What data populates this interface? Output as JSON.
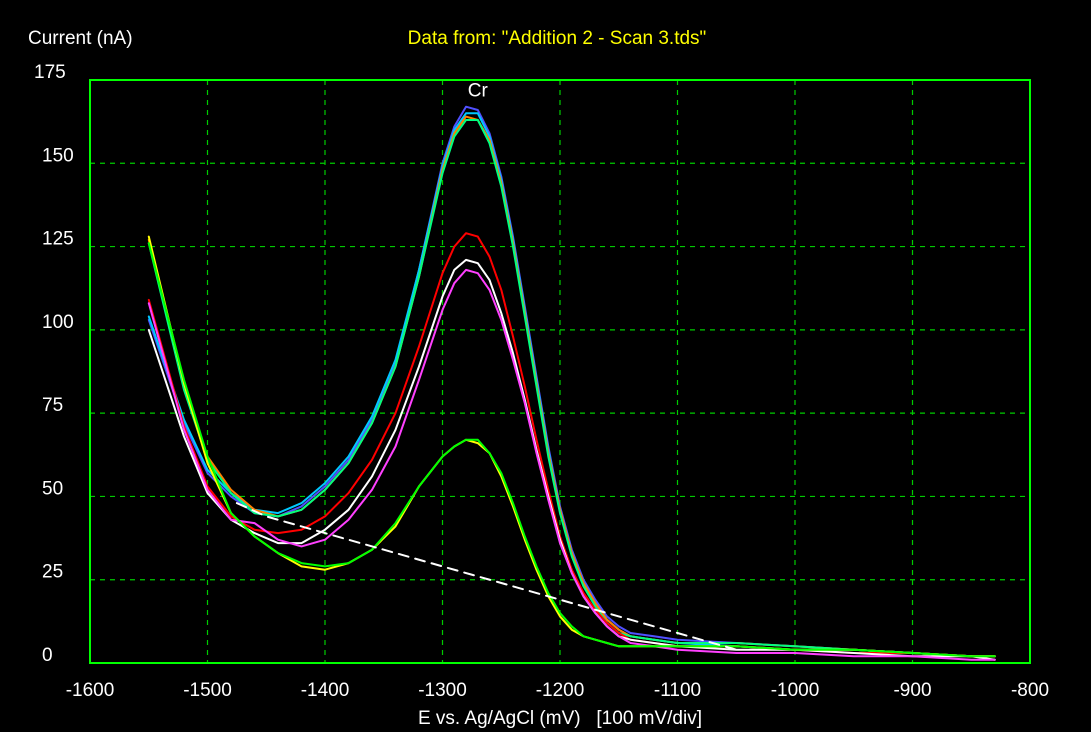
{
  "colors": {
    "background": "#000000",
    "frame": "#00ff00",
    "grid": "#00cc00",
    "title": "#ffff00",
    "text": "#ffffff"
  },
  "chart_data": {
    "type": "line",
    "title": "Data from: \"Addition 2 - Scan 3.tds\"",
    "ylabel": "Current (nA)",
    "xlabel": "E vs. Ag/AgCl (mV)   [100 mV/div]",
    "xlim": [
      -1600,
      -800
    ],
    "ylim": [
      0,
      175
    ],
    "xticks": [
      "-1600",
      "-1500",
      "-1400",
      "-1300",
      "-1200",
      "-1100",
      "-1000",
      "-900",
      "-800"
    ],
    "yticks": [
      "0",
      "25",
      "50",
      "75",
      "100",
      "125",
      "150",
      "175"
    ],
    "grid": true,
    "annotations": [
      {
        "text": "Cr",
        "x": -1270,
        "y": 170
      }
    ],
    "series": [
      {
        "color": "#5050ff",
        "x": [
          -1550,
          -1520,
          -1500,
          -1480,
          -1460,
          -1440,
          -1420,
          -1400,
          -1380,
          -1360,
          -1340,
          -1320,
          -1300,
          -1290,
          -1280,
          -1270,
          -1260,
          -1250,
          -1240,
          -1230,
          -1220,
          -1210,
          -1200,
          -1190,
          -1180,
          -1170,
          -1160,
          -1150,
          -1140,
          -1120,
          -1100,
          -1050,
          -1000,
          -950,
          -900,
          -850,
          -830
        ],
        "y": [
          103,
          72,
          57,
          50,
          45,
          44,
          47,
          53,
          61,
          73,
          90,
          118,
          150,
          161,
          167,
          166,
          159,
          146,
          128,
          107,
          86,
          65,
          47,
          34,
          25,
          19,
          14,
          11,
          9,
          8,
          7,
          6,
          5,
          4,
          3,
          2,
          2
        ]
      },
      {
        "color": "#00c8ff",
        "x": [
          -1550,
          -1520,
          -1500,
          -1480,
          -1460,
          -1440,
          -1420,
          -1400,
          -1380,
          -1360,
          -1340,
          -1320,
          -1300,
          -1290,
          -1280,
          -1270,
          -1260,
          -1250,
          -1240,
          -1230,
          -1220,
          -1210,
          -1200,
          -1190,
          -1180,
          -1170,
          -1160,
          -1150,
          -1140,
          -1120,
          -1100,
          -1050,
          -1000,
          -950,
          -900,
          -850,
          -830
        ],
        "y": [
          104,
          73,
          58,
          51,
          46,
          45,
          48,
          54,
          62,
          74,
          91,
          118,
          149,
          160,
          165,
          165,
          158,
          145,
          127,
          106,
          85,
          64,
          46,
          33,
          24,
          18,
          13,
          10,
          8,
          7,
          6,
          5,
          4,
          4,
          3,
          2,
          2
        ]
      },
      {
        "color": "#ff8000",
        "x": [
          -1550,
          -1520,
          -1500,
          -1480,
          -1460,
          -1440,
          -1420,
          -1400,
          -1380,
          -1360,
          -1340,
          -1320,
          -1300,
          -1290,
          -1280,
          -1270,
          -1260,
          -1250,
          -1240,
          -1230,
          -1220,
          -1210,
          -1200,
          -1190,
          -1180,
          -1170,
          -1160,
          -1150,
          -1140,
          -1120,
          -1100,
          -1050,
          -1000,
          -950,
          -900,
          -850,
          -830
        ],
        "y": [
          127,
          83,
          62,
          52,
          46,
          44,
          46,
          52,
          60,
          72,
          89,
          116,
          148,
          159,
          164,
          163,
          157,
          144,
          126,
          105,
          84,
          63,
          46,
          33,
          24,
          18,
          13,
          10,
          8,
          7,
          6,
          6,
          5,
          4,
          3,
          2,
          2
        ]
      },
      {
        "color": "#00ff80",
        "x": [
          -1550,
          -1520,
          -1500,
          -1480,
          -1460,
          -1440,
          -1420,
          -1400,
          -1380,
          -1360,
          -1340,
          -1320,
          -1300,
          -1290,
          -1280,
          -1270,
          -1260,
          -1250,
          -1240,
          -1230,
          -1220,
          -1210,
          -1200,
          -1190,
          -1180,
          -1170,
          -1160,
          -1150,
          -1140,
          -1120,
          -1100,
          -1050,
          -1000,
          -950,
          -900,
          -850,
          -830
        ],
        "y": [
          126,
          82,
          61,
          51,
          45,
          44,
          46,
          52,
          60,
          72,
          89,
          116,
          147,
          158,
          163,
          163,
          156,
          143,
          125,
          104,
          83,
          62,
          45,
          32,
          23,
          17,
          12,
          9,
          8,
          7,
          6,
          6,
          5,
          4,
          3,
          2,
          2
        ]
      },
      {
        "color": "#ff0000",
        "x": [
          -1550,
          -1520,
          -1500,
          -1480,
          -1460,
          -1440,
          -1420,
          -1400,
          -1380,
          -1360,
          -1340,
          -1320,
          -1300,
          -1290,
          -1280,
          -1270,
          -1260,
          -1250,
          -1240,
          -1230,
          -1220,
          -1210,
          -1200,
          -1190,
          -1180,
          -1170,
          -1160,
          -1150,
          -1140,
          -1120,
          -1100,
          -1050,
          -1000,
          -950,
          -900,
          -850,
          -830
        ],
        "y": [
          109,
          71,
          53,
          44,
          40,
          39,
          40,
          44,
          51,
          61,
          75,
          95,
          117,
          125,
          129,
          128,
          122,
          112,
          98,
          83,
          67,
          52,
          38,
          28,
          21,
          16,
          12,
          9,
          7,
          6,
          5,
          5,
          4,
          3,
          3,
          2,
          2
        ]
      },
      {
        "color": "#ffffff",
        "x": [
          -1550,
          -1520,
          -1500,
          -1480,
          -1460,
          -1440,
          -1420,
          -1400,
          -1380,
          -1360,
          -1340,
          -1320,
          -1300,
          -1290,
          -1280,
          -1270,
          -1260,
          -1250,
          -1240,
          -1230,
          -1220,
          -1210,
          -1200,
          -1190,
          -1180,
          -1170,
          -1160,
          -1150,
          -1140,
          -1120,
          -1100,
          -1050,
          -1000,
          -950,
          -900,
          -850,
          -830
        ],
        "y": [
          100,
          68,
          51,
          43,
          39,
          36,
          36,
          40,
          46,
          56,
          70,
          89,
          110,
          118,
          121,
          120,
          115,
          105,
          93,
          79,
          64,
          50,
          37,
          27,
          20,
          15,
          11,
          8,
          7,
          6,
          5,
          4,
          4,
          3,
          2,
          2,
          1
        ]
      },
      {
        "color": "#ff40ff",
        "x": [
          -1550,
          -1520,
          -1500,
          -1480,
          -1460,
          -1440,
          -1420,
          -1400,
          -1380,
          -1360,
          -1340,
          -1320,
          -1300,
          -1290,
          -1280,
          -1270,
          -1260,
          -1250,
          -1240,
          -1230,
          -1220,
          -1210,
          -1200,
          -1190,
          -1180,
          -1170,
          -1160,
          -1150,
          -1140,
          -1120,
          -1100,
          -1050,
          -1000,
          -950,
          -900,
          -850,
          -830
        ],
        "y": [
          108,
          70,
          52,
          43,
          42,
          37,
          35,
          37,
          43,
          52,
          65,
          85,
          106,
          114,
          118,
          117,
          112,
          103,
          91,
          78,
          63,
          49,
          36,
          27,
          20,
          15,
          11,
          8,
          6,
          5,
          4,
          3,
          3,
          2,
          2,
          1,
          1
        ]
      },
      {
        "color": "#ffff00",
        "x": [
          -1550,
          -1520,
          -1500,
          -1480,
          -1460,
          -1440,
          -1420,
          -1400,
          -1380,
          -1360,
          -1340,
          -1320,
          -1300,
          -1290,
          -1280,
          -1270,
          -1260,
          -1250,
          -1240,
          -1230,
          -1220,
          -1210,
          -1200,
          -1190,
          -1180,
          -1170,
          -1160,
          -1150,
          -1140,
          -1120,
          -1100,
          -1050,
          -1000,
          -950,
          -900,
          -850,
          -830
        ],
        "y": [
          128,
          84,
          60,
          45,
          38,
          33,
          29,
          28,
          30,
          34,
          41,
          53,
          62,
          65,
          67,
          66,
          63,
          56,
          47,
          37,
          28,
          20,
          14,
          10,
          8,
          7,
          6,
          5,
          5,
          5,
          5,
          5,
          4,
          4,
          3,
          2,
          2
        ]
      },
      {
        "color": "#00ff00",
        "x": [
          -1550,
          -1520,
          -1500,
          -1480,
          -1460,
          -1440,
          -1420,
          -1400,
          -1380,
          -1360,
          -1340,
          -1320,
          -1300,
          -1290,
          -1280,
          -1270,
          -1260,
          -1250,
          -1240,
          -1230,
          -1220,
          -1210,
          -1200,
          -1190,
          -1180,
          -1170,
          -1160,
          -1150,
          -1140,
          -1120,
          -1100,
          -1050,
          -1000,
          -950,
          -900,
          -850,
          -830
        ],
        "y": [
          126,
          85,
          62,
          45,
          38,
          33,
          30,
          29,
          30,
          34,
          42,
          53,
          62,
          65,
          67,
          67,
          63,
          57,
          48,
          38,
          29,
          21,
          15,
          11,
          8,
          7,
          6,
          5,
          5,
          5,
          5,
          5,
          4,
          4,
          3,
          2,
          2
        ]
      },
      {
        "color": "#ffffff",
        "dashed": true,
        "x": [
          -1475,
          -1450,
          -1400,
          -1350,
          -1300,
          -1250,
          -1200,
          -1150,
          -1100,
          -1050
        ],
        "y": [
          48,
          44,
          39,
          34,
          29,
          24,
          19,
          14,
          9,
          4
        ]
      }
    ]
  }
}
